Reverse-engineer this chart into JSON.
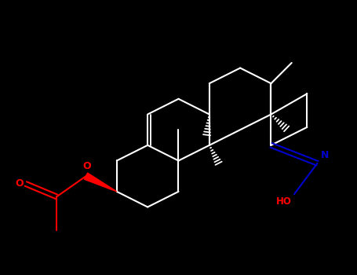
{
  "background_color": "#000000",
  "bond_color": "#ffffff",
  "atom_colors": {
    "O": "#ff0000",
    "N": "#0000cd"
  },
  "figsize": [
    4.55,
    3.5
  ],
  "dpi": 100
}
